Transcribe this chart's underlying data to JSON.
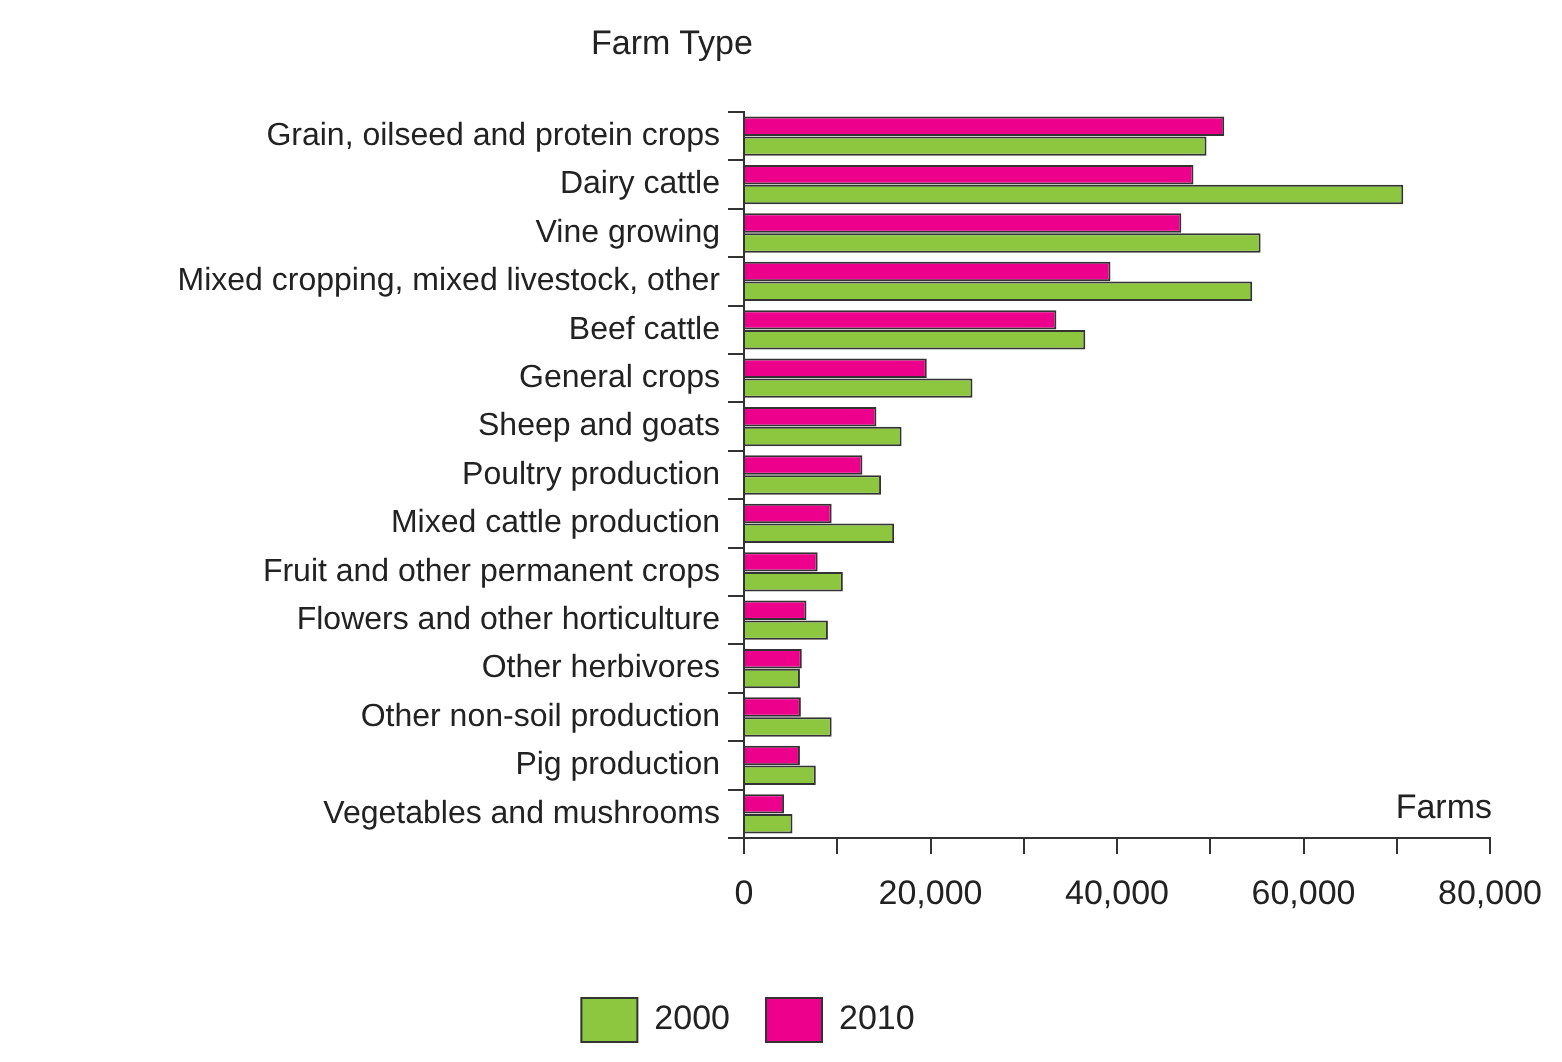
{
  "chart_data": {
    "type": "bar",
    "orientation": "horizontal",
    "ylabel": "Farm Type",
    "xlabel": "Farms",
    "categories": [
      "Grain, oilseed and protein crops",
      "Dairy cattle",
      "Vine growing",
      "Mixed cropping, mixed livestock, other",
      "Beef cattle",
      "General crops",
      "Sheep and goats",
      "Poultry production",
      "Mixed cattle production",
      "Fruit and other permanent crops",
      "Flowers and other horticulture",
      "Other herbivores",
      "Other non-soil production",
      "Pig production",
      "Vegetables and mushrooms"
    ],
    "series": [
      {
        "name": "2000",
        "color": "#8dc63f",
        "values": [
          49600,
          70700,
          55400,
          54500,
          36600,
          24500,
          16900,
          14700,
          16100,
          10600,
          9000,
          6000,
          9400,
          7700,
          5200
        ]
      },
      {
        "name": "2010",
        "color": "#ec008c",
        "values": [
          51500,
          48200,
          46900,
          39300,
          33500,
          19600,
          14200,
          12700,
          9400,
          7900,
          6700,
          6200,
          6100,
          6000,
          4300
        ]
      }
    ],
    "xlim": [
      0,
      80000
    ],
    "xticks": [
      0,
      {
        "value": 10000,
        "label": null
      },
      {
        "value": 20000,
        "label": "20,000"
      },
      {
        "value": 30000,
        "label": null
      },
      {
        "value": 40000,
        "label": "40,000"
      },
      {
        "value": 50000,
        "label": null
      },
      {
        "value": 60000,
        "label": "60,000"
      },
      {
        "value": 70000,
        "label": null
      },
      {
        "value": 80000,
        "label": "80,000"
      }
    ],
    "grid": false,
    "legend": "bottom"
  }
}
